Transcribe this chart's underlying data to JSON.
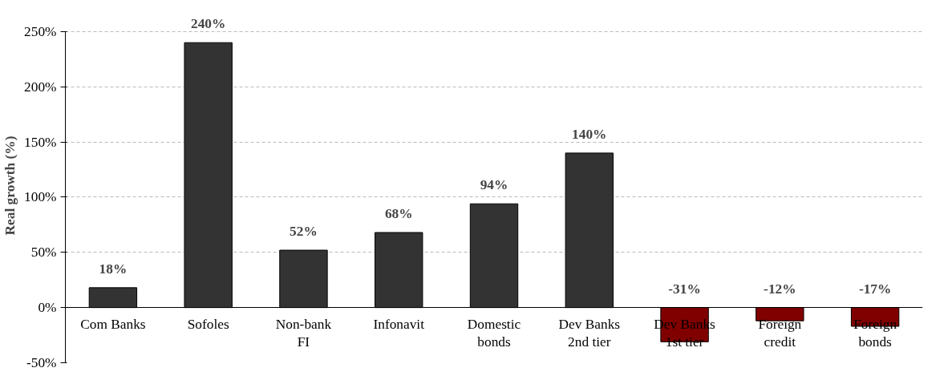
{
  "chart_data": {
    "type": "bar",
    "ylabel": "Real growth (%)",
    "categories": [
      "Com Banks",
      "Sofoles",
      "Non-bank FI",
      "Infonavit",
      "Domestic bonds",
      "Dev Banks 2nd tier",
      "Dev Banks 1st tier",
      "Foreign credit",
      "Foreign bonds"
    ],
    "values": [
      18,
      240,
      52,
      68,
      94,
      140,
      -31,
      -12,
      -17
    ],
    "colors": [
      "#333333",
      "#333333",
      "#333333",
      "#333333",
      "#333333",
      "#333333",
      "#800000",
      "#800000",
      "#800000"
    ],
    "value_labels": [
      "18%",
      "240%",
      "52%",
      "68%",
      "94%",
      "140%",
      "-31%",
      "-12%",
      "-17%"
    ],
    "ylim": [
      -50,
      250
    ],
    "yticks": [
      {
        "value": -50,
        "label": "-50%"
      },
      {
        "value": 0,
        "label": "0%"
      },
      {
        "value": 50,
        "label": "50%"
      },
      {
        "value": 100,
        "label": "100%"
      },
      {
        "value": 150,
        "label": "150%"
      },
      {
        "value": 200,
        "label": "200%"
      },
      {
        "value": 250,
        "label": "250%"
      }
    ],
    "grid": "y"
  }
}
